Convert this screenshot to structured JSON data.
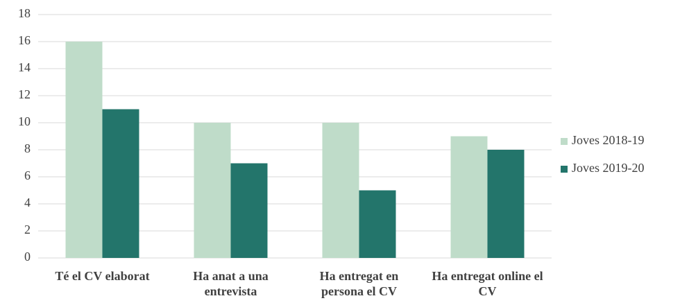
{
  "chart_data": {
    "type": "bar",
    "categories": [
      "Té el CV elaborat",
      "Ha anat a una entrevista",
      "Ha entregat en persona el CV",
      "Ha entregat online el CV"
    ],
    "series": [
      {
        "name": "Joves 2018-19",
        "color": "#bfdcc9",
        "values": [
          16,
          10,
          10,
          9
        ]
      },
      {
        "name": "Joves 2019-20",
        "color": "#23756b",
        "values": [
          11,
          7,
          5,
          8
        ]
      }
    ],
    "ylim": [
      0,
      18
    ],
    "yticks": [
      0,
      2,
      4,
      6,
      8,
      10,
      12,
      14,
      16,
      18
    ],
    "grid": true,
    "legend": "right"
  }
}
